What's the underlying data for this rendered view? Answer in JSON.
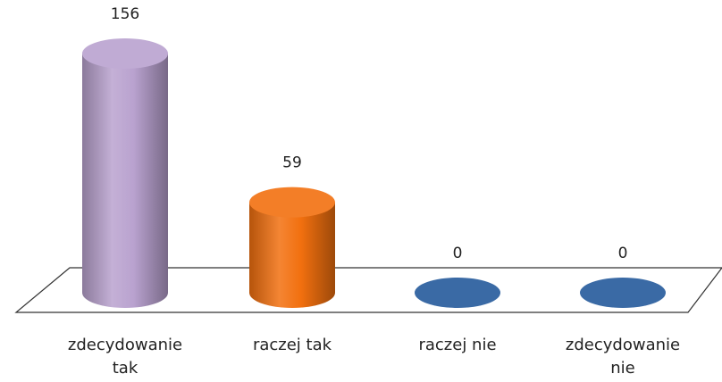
{
  "chart_data": {
    "type": "bar",
    "style": "3d-cylinder",
    "categories": [
      [
        "zdecydowanie",
        "tak"
      ],
      [
        "raczej tak"
      ],
      [
        "raczej nie"
      ],
      [
        "zdecydowanie",
        "nie"
      ]
    ],
    "values": [
      156,
      59,
      0,
      0
    ],
    "value_labels": [
      "156",
      "59",
      "0",
      "0"
    ],
    "colors": [
      "#b9a2cf",
      "#f2700f",
      "#3a6aa5",
      "#3a6aa5"
    ],
    "ylim": [
      0,
      156
    ],
    "grid": false,
    "legend": "none"
  }
}
